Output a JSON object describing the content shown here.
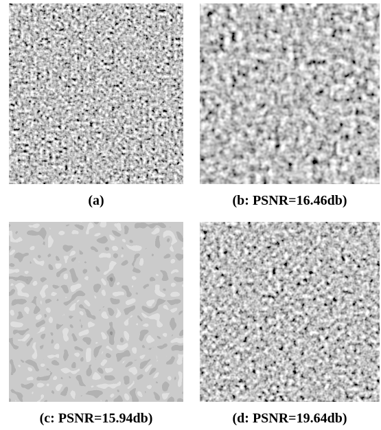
{
  "panels": [
    {
      "caption": "(a)"
    },
    {
      "caption": "(b: PSNR=16.46db)"
    },
    {
      "caption": "(c: PSNR=15.94db)"
    },
    {
      "caption": "(d: PSNR=19.64db)"
    }
  ]
}
